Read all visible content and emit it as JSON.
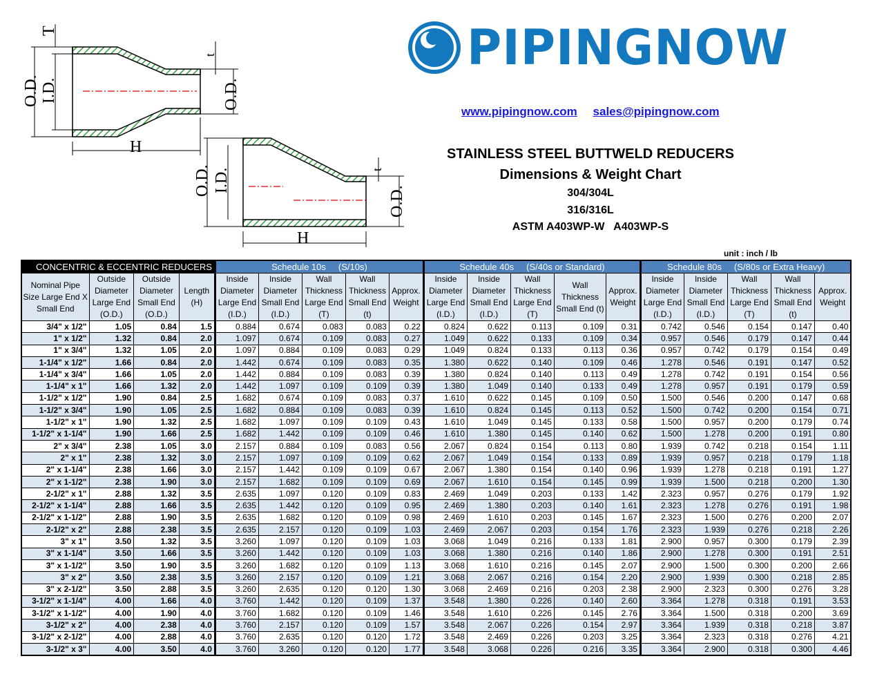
{
  "brand": {
    "name": "PIPINGNOW",
    "color": "#1478be"
  },
  "links": {
    "website": "www.pipingnow.com",
    "email": "sales@pipingnow.com"
  },
  "title": {
    "main": "STAINLESS STEEL BUTTWELD REDUCERS",
    "sub": "Dimensions & Weight Chart",
    "grade1": "304/304L",
    "grade2": "316/316L",
    "spec": "ASTM A403WP-W   A403WP-S"
  },
  "unit": "unit : inch / lb",
  "diagram": {
    "od": "O.D.",
    "id": "I.D.",
    "T": "T",
    "t": "t",
    "h": "H",
    "od_small": "O.D.",
    "hatch_color": "#2e9e3c",
    "centerline_color": "#e00000"
  },
  "table": {
    "sections": [
      "CONCENTRIC & ECCENTRIC REDUCERS",
      "Schedule 10s     (S/10s)",
      "Schedule 40s     (S/40s or Standard)",
      "Schedule 80s     (S/80s or Extra Heavy)"
    ],
    "headers": [
      "Nominal Pipe Size Large End X Small End",
      "Outside Diameter Large End (O.D.)",
      "Outside Diameter Small End (O.D.)",
      "Length (H)",
      "Inside Diameter Large End (I.D.)",
      "Inside Diameter Small End (I.D.)",
      "Wall Thickness Large End (T)",
      "Wall Thickness Small End (t)",
      "Approx. Weight",
      "Inside Diameter Large End (I.D.)",
      "Inside Diameter Small End (I.D.)",
      "Wall Thickness Large End (T)",
      "Wall Thickness Small End (t)",
      "Approx. Weight",
      "Inside Diameter Large End (I.D.)",
      "Inside Diameter Small End (I.D.)",
      "Wall Thickness Large End (T)",
      "Wall Thickness Small End (t)",
      "Approx. Weight"
    ],
    "rows": [
      [
        "3/4\" x 1/2\"",
        "1.05",
        "0.84",
        "1.5",
        "0.884",
        "0.674",
        "0.083",
        "0.083",
        "0.22",
        "0.824",
        "0.622",
        "0.113",
        "0.109",
        "0.31",
        "0.742",
        "0.546",
        "0.154",
        "0.147",
        "0.40"
      ],
      [
        "1\" x 1/2\"",
        "1.32",
        "0.84",
        "2.0",
        "1.097",
        "0.674",
        "0.109",
        "0.083",
        "0.27",
        "1.049",
        "0.622",
        "0.133",
        "0.109",
        "0.34",
        "0.957",
        "0.546",
        "0.179",
        "0.147",
        "0.44"
      ],
      [
        "1\" x 3/4\"",
        "1.32",
        "1.05",
        "2.0",
        "1.097",
        "0.884",
        "0.109",
        "0.083",
        "0.29",
        "1.049",
        "0.824",
        "0.133",
        "0.113",
        "0.36",
        "0.957",
        "0.742",
        "0.179",
        "0.154",
        "0.49"
      ],
      [
        "1-1/4\" x 1/2\"",
        "1.66",
        "0.84",
        "2.0",
        "1.442",
        "0.674",
        "0.109",
        "0.083",
        "0.35",
        "1.380",
        "0.622",
        "0.140",
        "0.109",
        "0.46",
        "1.278",
        "0.546",
        "0.191",
        "0.147",
        "0.52"
      ],
      [
        "1-1/4\" x 3/4\"",
        "1.66",
        "1.05",
        "2.0",
        "1.442",
        "0.884",
        "0.109",
        "0.083",
        "0.39",
        "1.380",
        "0.824",
        "0.140",
        "0.113",
        "0.49",
        "1.278",
        "0.742",
        "0.191",
        "0.154",
        "0.56"
      ],
      [
        "1-1/4\" x 1\"",
        "1.66",
        "1.32",
        "2.0",
        "1.442",
        "1.097",
        "0.109",
        "0.109",
        "0.39",
        "1.380",
        "1.049",
        "0.140",
        "0.133",
        "0.49",
        "1.278",
        "0.957",
        "0.191",
        "0.179",
        "0.59"
      ],
      [
        "1-1/2\" x 1/2\"",
        "1.90",
        "0.84",
        "2.5",
        "1.682",
        "0.674",
        "0.109",
        "0.083",
        "0.37",
        "1.610",
        "0.622",
        "0.145",
        "0.109",
        "0.50",
        "1.500",
        "0.546",
        "0.200",
        "0.147",
        "0.68"
      ],
      [
        "1-1/2\" x 3/4\"",
        "1.90",
        "1.05",
        "2.5",
        "1.682",
        "0.884",
        "0.109",
        "0.083",
        "0.39",
        "1.610",
        "0.824",
        "0.145",
        "0.113",
        "0.52",
        "1.500",
        "0.742",
        "0.200",
        "0.154",
        "0.71"
      ],
      [
        "1-1/2\" x 1\"",
        "1.90",
        "1.32",
        "2.5",
        "1.682",
        "1.097",
        "0.109",
        "0.109",
        "0.43",
        "1.610",
        "1.049",
        "0.145",
        "0.133",
        "0.58",
        "1.500",
        "0.957",
        "0.200",
        "0.179",
        "0.74"
      ],
      [
        "1-1/2\" x 1-1/4\"",
        "1.90",
        "1.66",
        "2.5",
        "1.682",
        "1.442",
        "0.109",
        "0.109",
        "0.46",
        "1.610",
        "1.380",
        "0.145",
        "0.140",
        "0.62",
        "1.500",
        "1.278",
        "0.200",
        "0.191",
        "0.80"
      ],
      [
        "2\" x 3/4\"",
        "2.38",
        "1.05",
        "3.0",
        "2.157",
        "0.884",
        "0.109",
        "0.083",
        "0.56",
        "2.067",
        "0.824",
        "0.154",
        "0.113",
        "0.80",
        "1.939",
        "0.742",
        "0.218",
        "0.154",
        "1.11"
      ],
      [
        "2\" x 1\"",
        "2.38",
        "1.32",
        "3.0",
        "2.157",
        "1.097",
        "0.109",
        "0.109",
        "0.62",
        "2.067",
        "1.049",
        "0.154",
        "0.133",
        "0.89",
        "1.939",
        "0.957",
        "0.218",
        "0.179",
        "1.18"
      ],
      [
        "2\" x 1-1/4\"",
        "2.38",
        "1.66",
        "3.0",
        "2.157",
        "1.442",
        "0.109",
        "0.109",
        "0.67",
        "2.067",
        "1.380",
        "0.154",
        "0.140",
        "0.96",
        "1.939",
        "1.278",
        "0.218",
        "0.191",
        "1.27"
      ],
      [
        "2\" x 1-1/2\"",
        "2.38",
        "1.90",
        "3.0",
        "2.157",
        "1.682",
        "0.109",
        "0.109",
        "0.69",
        "2.067",
        "1.610",
        "0.154",
        "0.145",
        "0.99",
        "1.939",
        "1.500",
        "0.218",
        "0.200",
        "1.30"
      ],
      [
        "2-1/2\" x 1\"",
        "2.88",
        "1.32",
        "3.5",
        "2.635",
        "1.097",
        "0.120",
        "0.109",
        "0.83",
        "2.469",
        "1.049",
        "0.203",
        "0.133",
        "1.42",
        "2.323",
        "0.957",
        "0.276",
        "0.179",
        "1.92"
      ],
      [
        "2-1/2\" x 1-1/4\"",
        "2.88",
        "1.66",
        "3.5",
        "2.635",
        "1.442",
        "0.120",
        "0.109",
        "0.95",
        "2.469",
        "1.380",
        "0.203",
        "0.140",
        "1.61",
        "2.323",
        "1.278",
        "0.276",
        "0.191",
        "1.98"
      ],
      [
        "2-1/2\" x 1-1/2\"",
        "2.88",
        "1.90",
        "3.5",
        "2.635",
        "1.682",
        "0.120",
        "0.109",
        "0.98",
        "2.469",
        "1.610",
        "0.203",
        "0.145",
        "1.67",
        "2.323",
        "1.500",
        "0.276",
        "0.200",
        "2.07"
      ],
      [
        "2-1/2\" x 2\"",
        "2.88",
        "2.38",
        "3.5",
        "2.635",
        "2.157",
        "0.120",
        "0.109",
        "1.03",
        "2.469",
        "2.067",
        "0.203",
        "0.154",
        "1.76",
        "2.323",
        "1.939",
        "0.276",
        "0.218",
        "2.26"
      ],
      [
        "3\" x 1\"",
        "3.50",
        "1.32",
        "3.5",
        "3.260",
        "1.097",
        "0.120",
        "0.109",
        "1.03",
        "3.068",
        "1.049",
        "0.216",
        "0.133",
        "1.81",
        "2.900",
        "0.957",
        "0.300",
        "0.179",
        "2.39"
      ],
      [
        "3\" x 1-1/4\"",
        "3.50",
        "1.66",
        "3.5",
        "3.260",
        "1.442",
        "0.120",
        "0.109",
        "1.03",
        "3.068",
        "1.380",
        "0.216",
        "0.140",
        "1.86",
        "2.900",
        "1.278",
        "0.300",
        "0.191",
        "2.51"
      ],
      [
        "3\" x 1-1/2\"",
        "3.50",
        "1.90",
        "3.5",
        "3.260",
        "1.682",
        "0.120",
        "0.109",
        "1.13",
        "3.068",
        "1.610",
        "0.216",
        "0.145",
        "2.07",
        "2.900",
        "1.500",
        "0.300",
        "0.200",
        "2.66"
      ],
      [
        "3\" x 2\"",
        "3.50",
        "2.38",
        "3.5",
        "3.260",
        "2.157",
        "0.120",
        "0.109",
        "1.21",
        "3.068",
        "2.067",
        "0.216",
        "0.154",
        "2.20",
        "2.900",
        "1.939",
        "0.300",
        "0.218",
        "2.85"
      ],
      [
        "3\" x 2-1/2\"",
        "3.50",
        "2.88",
        "3.5",
        "3.260",
        "2.635",
        "0.120",
        "0.120",
        "1.30",
        "3.068",
        "2.469",
        "0.216",
        "0.203",
        "2.38",
        "2.900",
        "2.323",
        "0.300",
        "0.276",
        "3.28"
      ],
      [
        "3-1/2\" x 1-1/4\"",
        "4.00",
        "1.66",
        "4.0",
        "3.760",
        "1.442",
        "0.120",
        "0.109",
        "1.37",
        "3.548",
        "1.380",
        "0.226",
        "0.140",
        "2.60",
        "3.364",
        "1.278",
        "0.318",
        "0.191",
        "3.53"
      ],
      [
        "3-1/2\" x 1-1/2\"",
        "4.00",
        "1.90",
        "4.0",
        "3.760",
        "1.682",
        "0.120",
        "0.109",
        "1.46",
        "3.548",
        "1.610",
        "0.226",
        "0.145",
        "2.76",
        "3.364",
        "1.500",
        "0.318",
        "0.200",
        "3.69"
      ],
      [
        "3-1/2\" x 2\"",
        "4.00",
        "2.38",
        "4.0",
        "3.760",
        "2.157",
        "0.120",
        "0.109",
        "1.57",
        "3.548",
        "2.067",
        "0.226",
        "0.154",
        "2.97",
        "3.364",
        "1.939",
        "0.318",
        "0.218",
        "3.87"
      ],
      [
        "3-1/2\" x 2-1/2\"",
        "4.00",
        "2.88",
        "4.0",
        "3.760",
        "2.635",
        "0.120",
        "0.120",
        "1.72",
        "3.548",
        "2.469",
        "0.226",
        "0.203",
        "3.25",
        "3.364",
        "2.323",
        "0.318",
        "0.276",
        "4.21"
      ],
      [
        "3-1/2\" x 3\"",
        "4.00",
        "3.50",
        "4.0",
        "3.760",
        "3.260",
        "0.120",
        "0.120",
        "1.77",
        "3.548",
        "3.068",
        "0.226",
        "0.216",
        "3.35",
        "3.364",
        "2.900",
        "0.318",
        "0.300",
        "4.46"
      ]
    ]
  }
}
